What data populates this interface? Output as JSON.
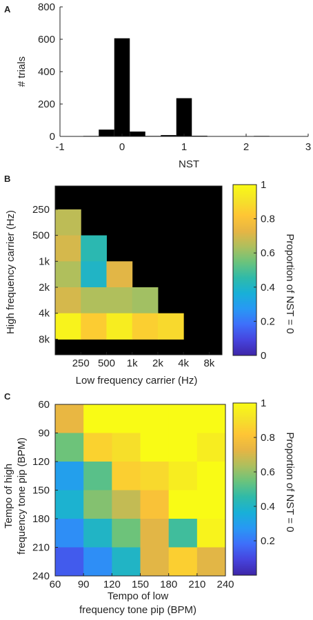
{
  "panels": {
    "a": {
      "letter": "A"
    },
    "b": {
      "letter": "B"
    },
    "c": {
      "letter": "C"
    }
  },
  "colormap": [
    "#3e26a8",
    "#4644de",
    "#3e6ffa",
    "#2898f4",
    "#18b0d8",
    "#2fbaa9",
    "#6ac37c",
    "#aebf5d",
    "#e6b544",
    "#fec535",
    "#f5e229",
    "#f9fb15"
  ],
  "chart_data": [
    {
      "type": "bar",
      "panel": "A",
      "title": "",
      "xlabel": "NST",
      "ylabel": "# trials",
      "xlim": [
        -1,
        3
      ],
      "ylim": [
        0,
        800
      ],
      "xticks": [
        "-1",
        "0",
        "1",
        "2",
        "3"
      ],
      "yticks": [
        "0",
        "200",
        "400",
        "600",
        "800"
      ],
      "bin_width": 0.25,
      "bar_color": "#000000",
      "x": [
        -0.75,
        -0.5,
        -0.25,
        0,
        0.25,
        0.5,
        0.75,
        1,
        1.25,
        1.5,
        1.75,
        2,
        2.25,
        2.5
      ],
      "values": [
        1,
        3,
        42,
        606,
        30,
        3,
        8,
        236,
        4,
        1,
        0,
        2,
        3,
        1
      ]
    },
    {
      "type": "heatmap",
      "panel": "B",
      "title": "",
      "xlabel": "Low frequency carrier (Hz)",
      "ylabel": "High frequency carrier (Hz)",
      "x_categories": [
        "250",
        "500",
        "1k",
        "2k",
        "4k",
        "8k"
      ],
      "y_categories": [
        "250",
        "500",
        "1k",
        "2k",
        "4k",
        "8k"
      ],
      "missing_color": "#000000",
      "colorbar": {
        "label": "Proportion of NST = 0",
        "ticks": [
          "0",
          "0.2",
          "0.4",
          "0.6",
          "0.8",
          "1"
        ],
        "range": [
          0,
          1
        ]
      },
      "values": [
        [
          0.66,
          null,
          null,
          null,
          null,
          null
        ],
        [
          0.7,
          0.44,
          null,
          null,
          null,
          null
        ],
        [
          0.64,
          0.4,
          0.72,
          null,
          null,
          null
        ],
        [
          0.7,
          0.64,
          0.64,
          0.62,
          null,
          null
        ],
        [
          0.97,
          0.84,
          0.95,
          0.85,
          0.88,
          null
        ],
        [
          null,
          null,
          null,
          null,
          null,
          null
        ]
      ]
    },
    {
      "type": "heatmap",
      "panel": "C",
      "title": "",
      "xlabel_lines": [
        "Tempo of low",
        "frequency tone pip (BPM)"
      ],
      "ylabel_lines": [
        "Tempo of high",
        "frequency tone pip (BPM)"
      ],
      "x_ticks": [
        "60",
        "90",
        "120",
        "150",
        "180",
        "210",
        "240"
      ],
      "y_ticks": [
        "60",
        "90",
        "120",
        "150",
        "180",
        "210",
        "240"
      ],
      "colorbar": {
        "label": "Proportion of NST = 0",
        "ticks": [
          "0.2",
          "0.4",
          "0.6",
          "0.8",
          "1"
        ],
        "range": [
          0,
          1
        ]
      },
      "values": [
        [
          0.74,
          1,
          1,
          1,
          1,
          1
        ],
        [
          0.55,
          0.86,
          0.9,
          1,
          1,
          0.95
        ],
        [
          0.3,
          0.52,
          0.85,
          0.88,
          0.95,
          1
        ],
        [
          0.38,
          0.58,
          0.67,
          0.8,
          1,
          1
        ],
        [
          0.25,
          0.4,
          0.55,
          0.72,
          0.48,
          0.97
        ],
        [
          0.14,
          0.25,
          0.4,
          0.72,
          0.85,
          0.72
        ]
      ]
    }
  ]
}
